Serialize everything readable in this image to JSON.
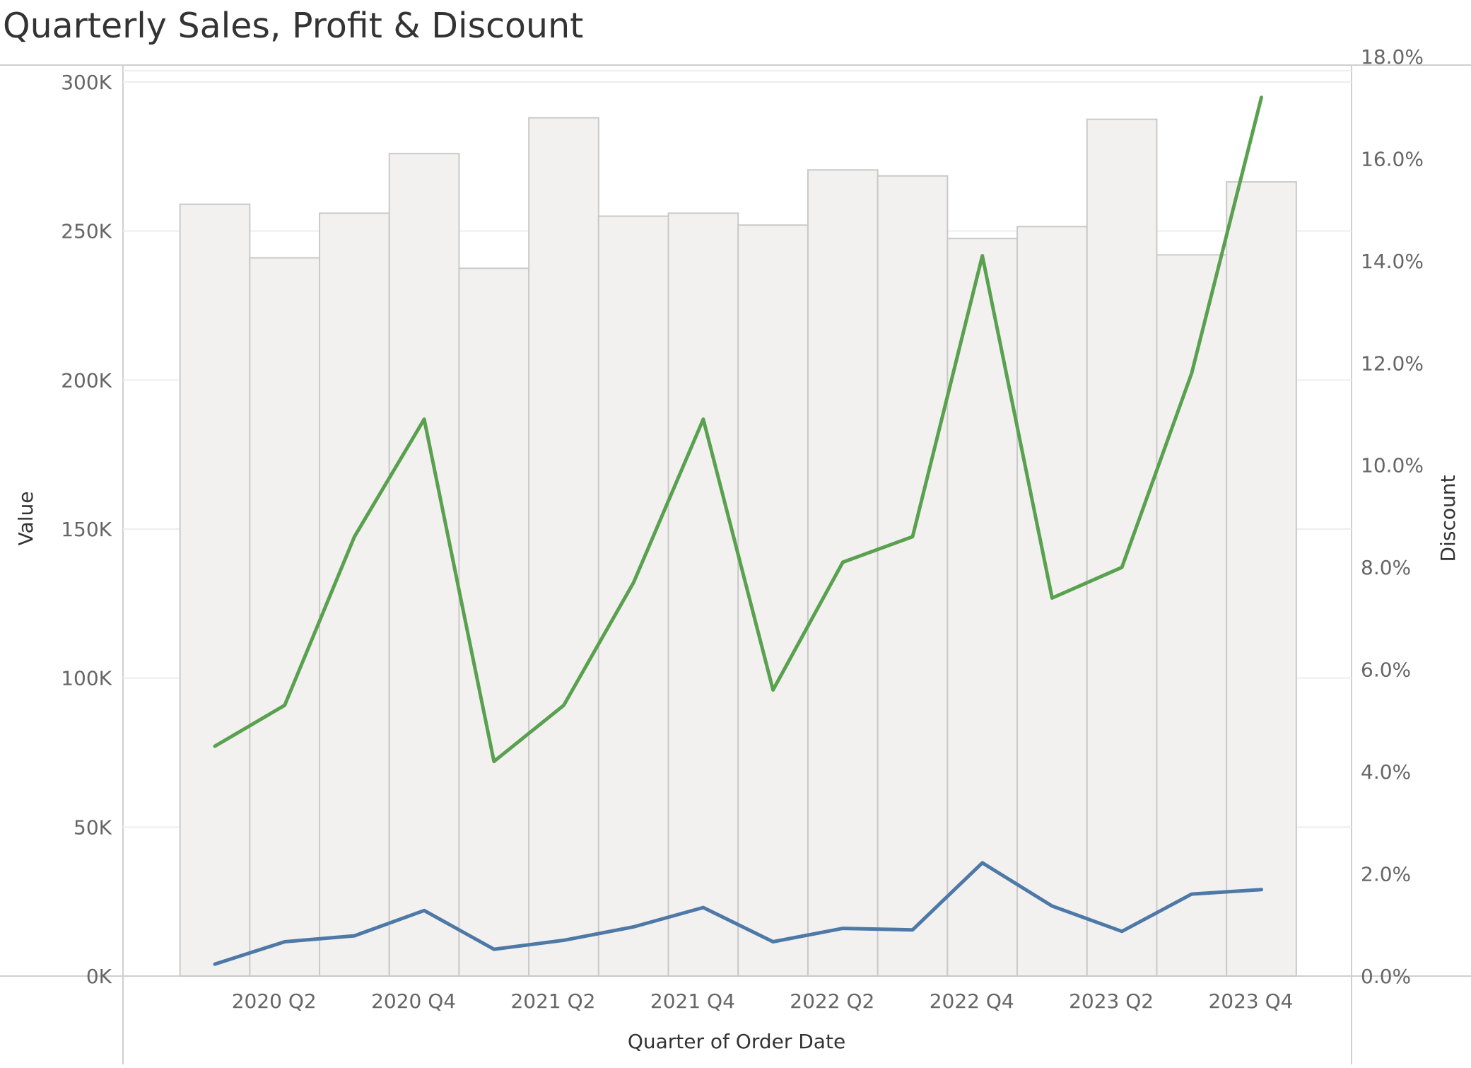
{
  "title": "Quarterly Sales, Profit & Discount",
  "colors": {
    "bar_fill": "#f2f1f0",
    "bar_stroke": "#c9c9c9",
    "discount_line": "#59a14f",
    "profit_line": "#4e79a7",
    "gridline": "#ededed"
  },
  "chart_data": {
    "type": "bar",
    "categories": [
      "2020 Q1",
      "2020 Q2",
      "2020 Q3",
      "2020 Q4",
      "2021 Q1",
      "2021 Q2",
      "2021 Q3",
      "2021 Q4",
      "2022 Q1",
      "2022 Q2",
      "2022 Q3",
      "2022 Q4",
      "2023 Q1",
      "2023 Q2",
      "2023 Q3",
      "2023 Q4"
    ],
    "x_tick_labels": [
      "2020 Q2",
      "2020 Q4",
      "2021 Q2",
      "2021 Q4",
      "2022 Q2",
      "2022 Q4",
      "2023 Q2",
      "2023 Q4"
    ],
    "xlabel": "Quarter of Order Date",
    "ylabel": "Value",
    "y2label": "Discount",
    "ylim": [
      0,
      300000
    ],
    "y2lim": [
      0,
      17.5
    ],
    "y_ticks": [
      "0K",
      "50K",
      "100K",
      "150K",
      "200K",
      "250K",
      "300K"
    ],
    "y2_ticks": [
      "0.0%",
      "2.0%",
      "4.0%",
      "6.0%",
      "8.0%",
      "10.0%",
      "12.0%",
      "14.0%",
      "16.0%",
      "18.0%"
    ],
    "grid": true,
    "series": [
      {
        "values": [
          259000,
          241000,
          256000,
          276000,
          237500,
          288000,
          255000,
          256000,
          252000,
          270500,
          268500,
          247500,
          251500,
          287500,
          242000,
          266500
        ],
        "mark": "bar",
        "axis": "left"
      },
      {
        "values": [
          4.5,
          5.3,
          8.6,
          10.9,
          4.2,
          5.3,
          7.7,
          10.9,
          5.6,
          8.1,
          8.6,
          14.1,
          7.4,
          8.0,
          11.8,
          17.2
        ],
        "mark": "line",
        "axis": "right",
        "color": "#59a14f"
      },
      {
        "values": [
          4000,
          11500,
          13500,
          22000,
          9000,
          12000,
          16500,
          23000,
          11500,
          16000,
          15500,
          38000,
          23500,
          15000,
          27500,
          29000
        ],
        "mark": "line",
        "axis": "left",
        "color": "#4e79a7"
      }
    ]
  }
}
